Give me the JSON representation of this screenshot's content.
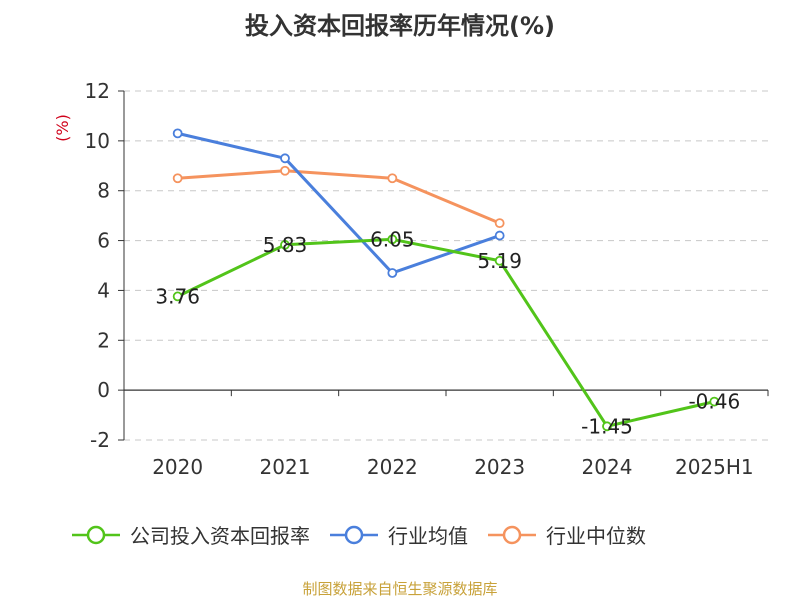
{
  "chart_data": {
    "type": "line",
    "title": "投入资本回报率历年情况(%)",
    "ylabel": "(%)",
    "categories": [
      "2020",
      "2021",
      "2022",
      "2023",
      "2024",
      "2025H1"
    ],
    "ylim": [
      -2,
      12
    ],
    "yticks": [
      -2,
      0,
      2,
      4,
      6,
      8,
      10,
      12
    ],
    "grid": true,
    "legend_position": "bottom",
    "series": [
      {
        "name": "公司投入资本回报率",
        "color": "#52c41a",
        "values": [
          3.76,
          5.83,
          6.05,
          5.19,
          -1.45,
          -0.46
        ],
        "labels": true
      },
      {
        "name": "行业均值",
        "color": "#4a7fdc",
        "values": [
          10.3,
          9.3,
          4.7,
          6.2,
          null,
          null
        ],
        "labels": false
      },
      {
        "name": "行业中位数",
        "color": "#f5935e",
        "values": [
          8.5,
          8.8,
          8.5,
          6.7,
          null,
          null
        ],
        "labels": false
      }
    ]
  },
  "source": "制图数据来自恒生聚源数据库"
}
